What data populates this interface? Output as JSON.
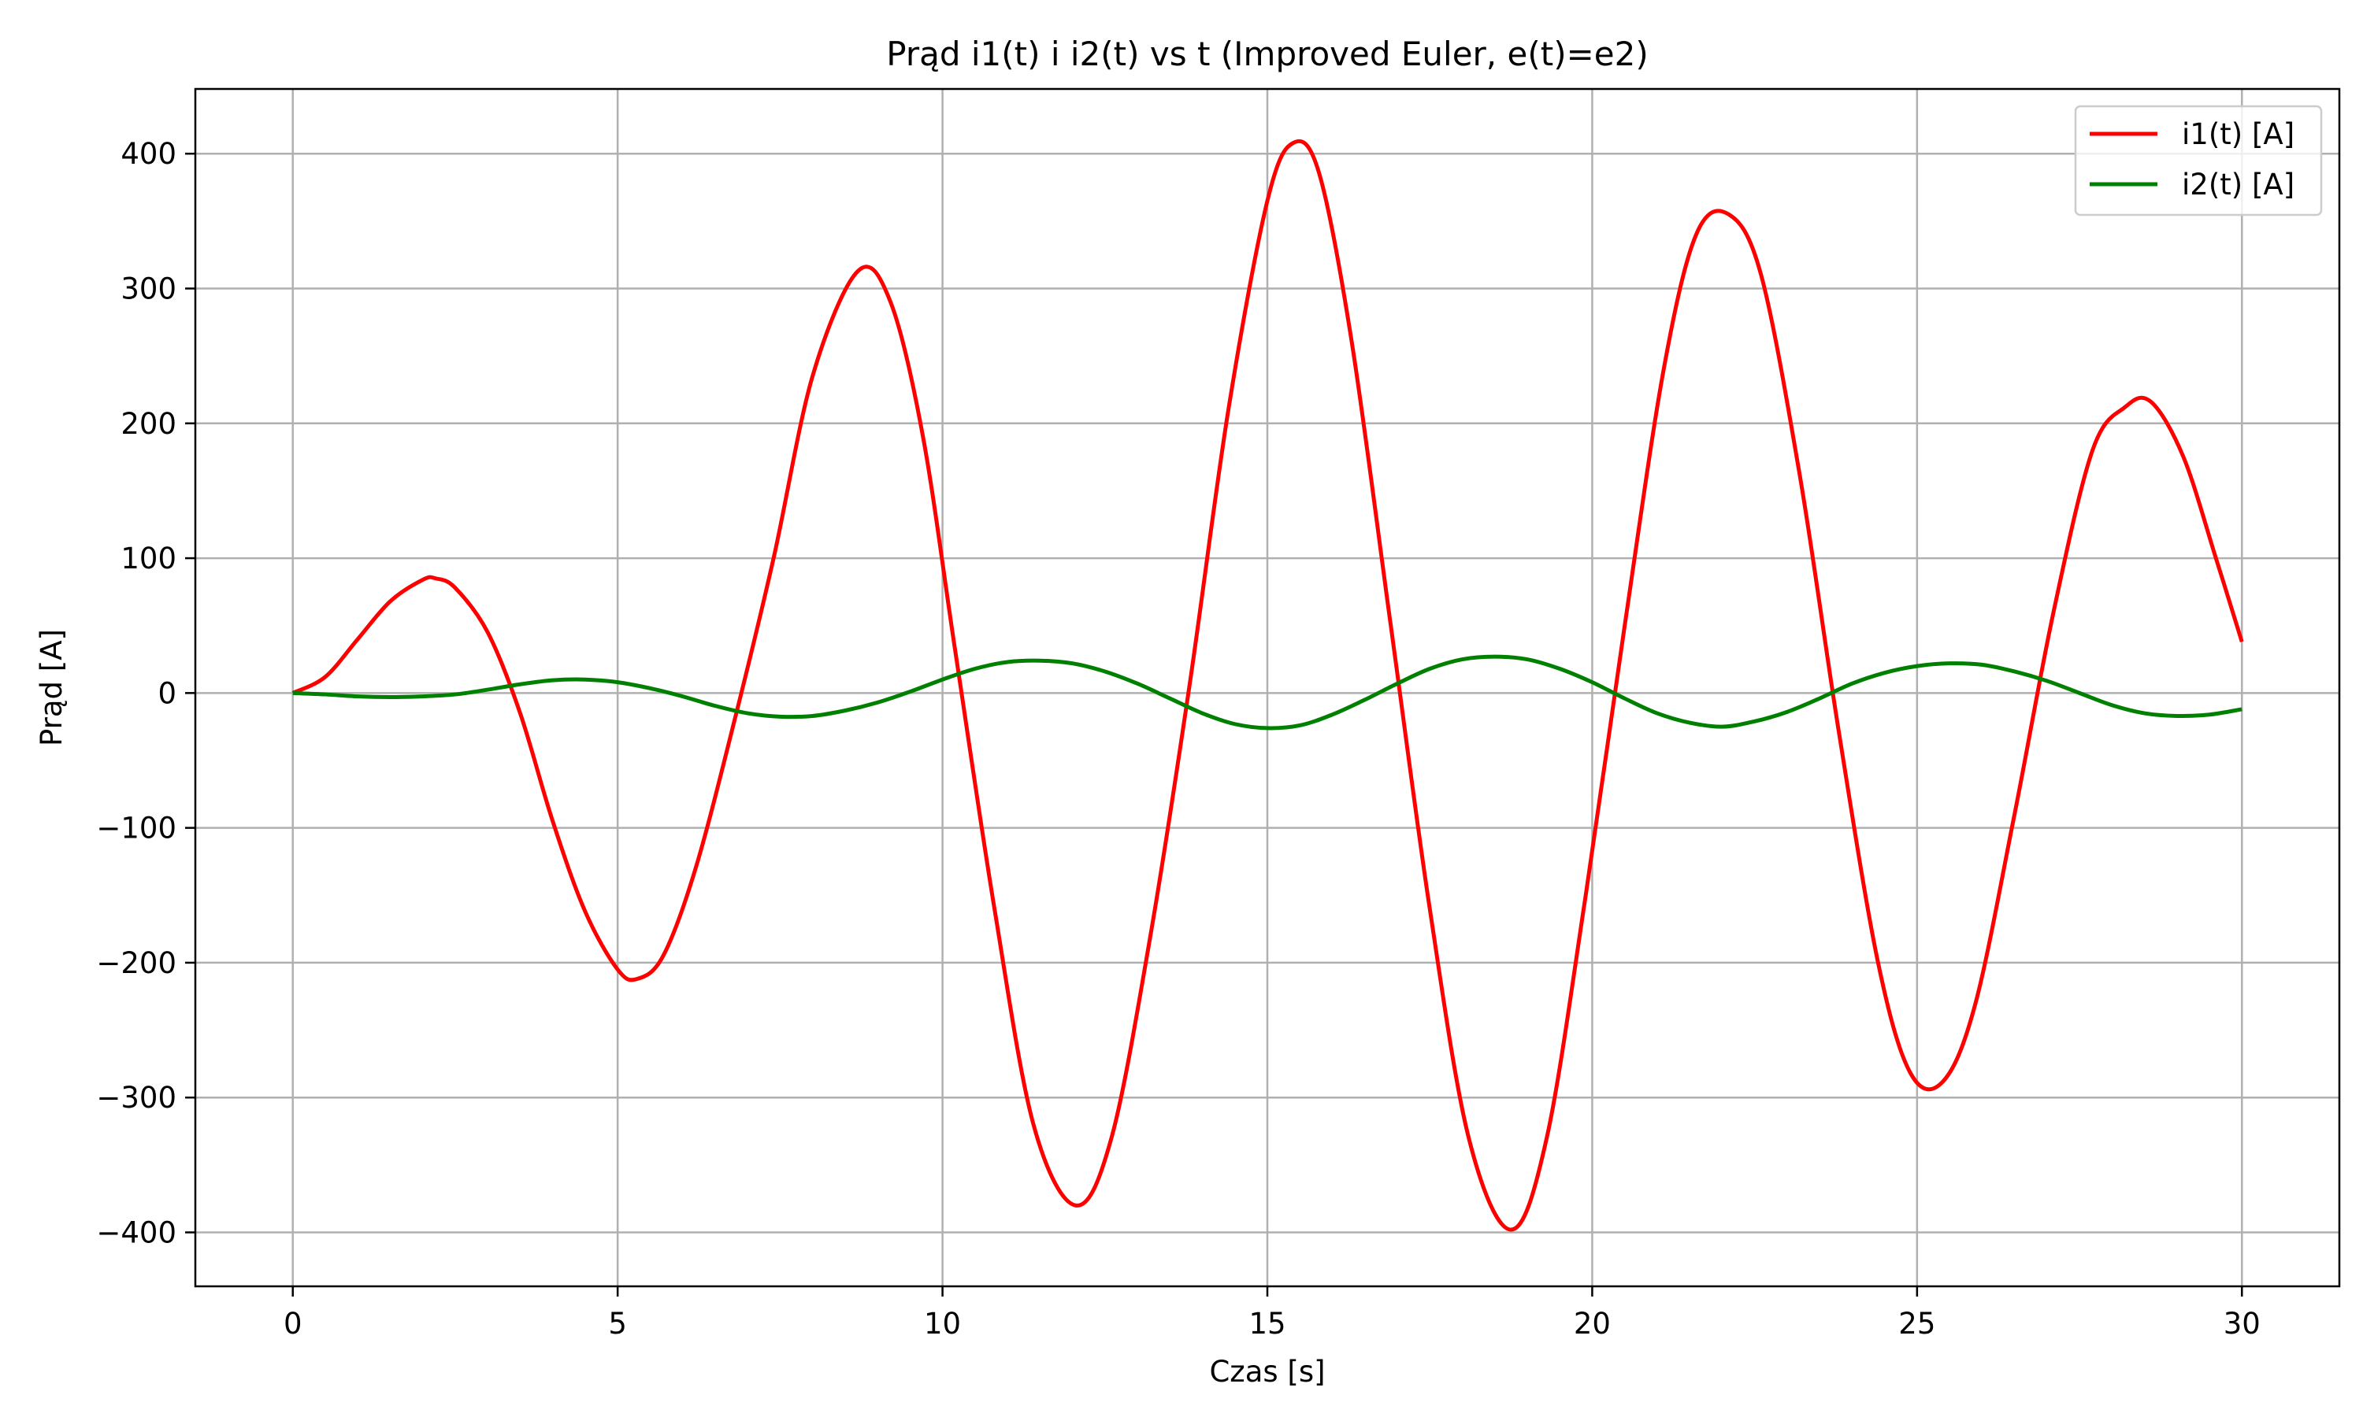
{
  "chart_data": {
    "type": "line",
    "title": "Prąd i1(t) i i2(t) vs t (Improved Euler, e(t)=e2)",
    "xlabel": "Czas [s]",
    "ylabel": "Prąd [A]",
    "xlim": [
      -1.5,
      31.5
    ],
    "ylim": [
      -440,
      448
    ],
    "xticks": [
      0,
      5,
      10,
      15,
      20,
      25,
      30
    ],
    "xtick_labels": [
      "0",
      "5",
      "10",
      "15",
      "20",
      "25",
      "30"
    ],
    "yticks": [
      400,
      300,
      200,
      100,
      0,
      -100,
      -200,
      -300,
      -400
    ],
    "ytick_labels": [
      "400",
      "300",
      "200",
      "100",
      "0",
      "−100",
      "−200",
      "−300",
      "−400"
    ],
    "grid": true,
    "legend_position": "top-right",
    "series": [
      {
        "name": "i1(t) [A]",
        "color": "#ff0000",
        "x": [
          0,
          0.5,
          1,
          1.5,
          2,
          2.2,
          2.5,
          3,
          3.5,
          4,
          4.5,
          5,
          5.3,
          5.7,
          6.2,
          6.8,
          7.4,
          8,
          8.7,
          9.2,
          9.7,
          10.2,
          10.8,
          11.4,
          12.05,
          12.6,
          13.2,
          13.8,
          14.4,
          15,
          15.4,
          15.8,
          16.3,
          16.9,
          17.5,
          18.1,
          18.75,
          19.3,
          19.9,
          20.5,
          21.1,
          21.6,
          22.1,
          22.6,
          23.2,
          23.8,
          24.4,
          24.9,
          25.4,
          25.9,
          26.5,
          27.1,
          27.7,
          28.2,
          28.6,
          29.1,
          29.6,
          30
        ],
        "values": [
          0,
          12,
          40,
          68,
          84,
          85,
          78,
          45,
          -15,
          -95,
          -162,
          -205,
          -212,
          -195,
          -130,
          -20,
          100,
          235,
          313,
          290,
          190,
          30,
          -160,
          -320,
          -380,
          -330,
          -180,
          5,
          210,
          365,
          408,
          385,
          260,
          50,
          -160,
          -330,
          -398,
          -330,
          -150,
          50,
          240,
          340,
          355,
          310,
          160,
          -30,
          -200,
          -282,
          -288,
          -230,
          -90,
          60,
          180,
          212,
          216,
          175,
          100,
          38
        ]
      },
      {
        "name": "i2(t) [A]",
        "color": "#008000",
        "x": [
          0,
          0.5,
          1,
          1.5,
          2,
          2.5,
          3,
          3.5,
          4,
          4.5,
          5,
          5.5,
          6,
          6.5,
          7,
          7.5,
          8,
          8.5,
          9,
          9.5,
          10,
          10.5,
          11,
          11.5,
          12,
          12.5,
          13,
          13.5,
          14,
          14.5,
          15,
          15.5,
          16,
          16.5,
          17,
          17.5,
          18,
          18.5,
          19,
          19.5,
          20,
          20.5,
          21,
          21.5,
          22,
          22.5,
          23,
          23.5,
          24,
          24.5,
          25,
          25.5,
          26,
          26.5,
          27,
          27.5,
          28,
          28.5,
          29,
          29.5,
          30
        ],
        "values": [
          0,
          -1,
          -2.5,
          -3,
          -2.5,
          -1,
          2.5,
          6.5,
          9.5,
          10,
          8,
          3.5,
          -2.5,
          -9.5,
          -15,
          -17.5,
          -17,
          -13,
          -7,
          1,
          10,
          18,
          23,
          24,
          22,
          16,
          7,
          -4,
          -15,
          -23,
          -26,
          -24,
          -16,
          -5,
          7,
          18,
          25,
          27,
          25,
          18,
          8,
          -4,
          -15,
          -22,
          -25,
          -21,
          -14,
          -4,
          7,
          15,
          20,
          22,
          21,
          16,
          9,
          0,
          -9,
          -15,
          -17,
          -16,
          -12
        ]
      }
    ]
  }
}
